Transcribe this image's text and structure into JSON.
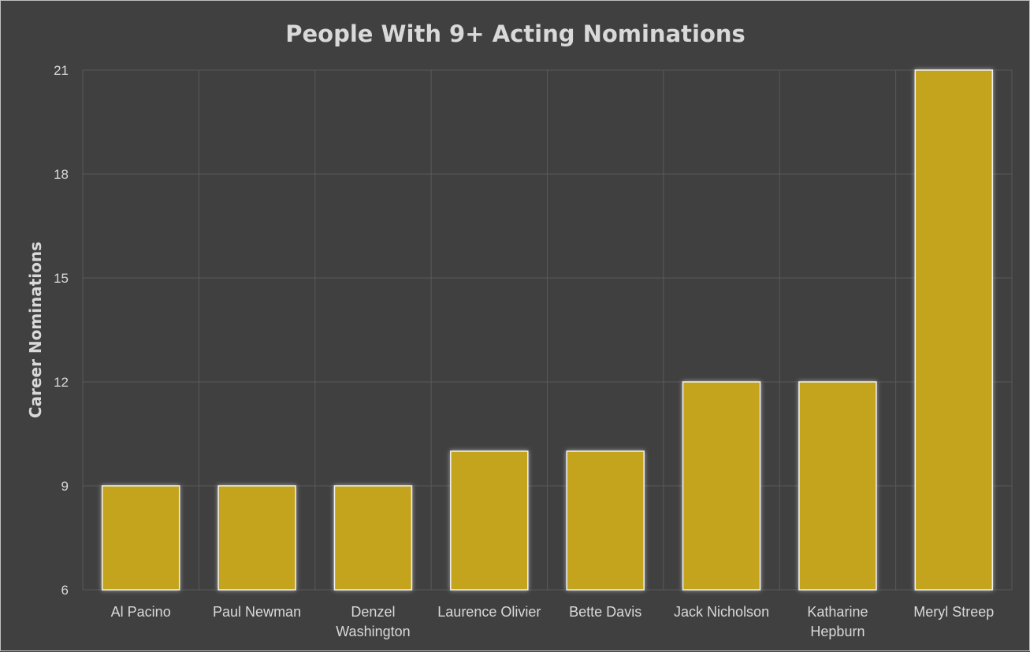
{
  "chart_data": {
    "type": "bar",
    "title": "People With 9+ Acting Nominations",
    "xlabel": "",
    "ylabel": "Career Nominations",
    "categories": [
      [
        "Al Pacino"
      ],
      [
        "Paul Newman"
      ],
      [
        "Denzel",
        "Washington"
      ],
      [
        "Laurence Olivier"
      ],
      [
        "Bette Davis"
      ],
      [
        "Jack Nicholson"
      ],
      [
        "Katharine",
        "Hepburn"
      ],
      [
        "Meryl Streep"
      ]
    ],
    "values": [
      9,
      9,
      9,
      10,
      10,
      12,
      12,
      21
    ],
    "ylim": [
      6,
      21
    ],
    "yticks": [
      6,
      9,
      12,
      15,
      18,
      21
    ],
    "grid": true,
    "legend": "none",
    "colors": {
      "background": "#404040",
      "bar": "#c3a41e",
      "bar_border": "#f2f2f2",
      "text": "#d9d9d9",
      "grid": "#595959"
    }
  }
}
